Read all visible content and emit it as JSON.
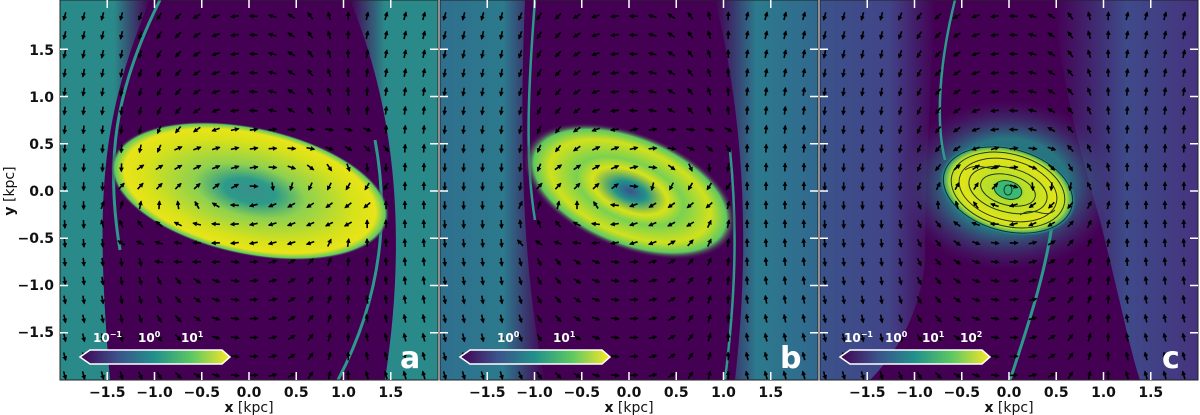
{
  "chart_data": [
    {
      "type": "heatmap",
      "panel": "a",
      "title": "",
      "xlabel": "x [kpc]",
      "ylabel": "y [kpc]",
      "xlim": [
        -2.0,
        2.0
      ],
      "ylim": [
        -2.0,
        2.0
      ],
      "xticks": [
        -1.5,
        -1.0,
        -0.5,
        0.0,
        0.5,
        1.0,
        1.5
      ],
      "yticks": [
        -1.5,
        -1.0,
        -0.5,
        0.0,
        0.5,
        1.0,
        1.5
      ],
      "colormap": "viridis",
      "colorbar": {
        "scale": "log",
        "ticks": [
          "10^-1",
          "10^0",
          "10^1"
        ],
        "extend": "both",
        "position": "lower-left inset"
      },
      "overlay": "velocity quiver arrows",
      "features": {
        "disk_semi_major_kpc": 1.45,
        "disk_semi_minor_kpc": 0.62,
        "disk_tilt_deg": -12,
        "dust_lane_offsets_kpc": [
          -1.5,
          1.5
        ]
      },
      "grid": false
    },
    {
      "type": "heatmap",
      "panel": "b",
      "xlabel": "x [kpc]",
      "ylabel": "",
      "xlim": [
        -2.0,
        2.0
      ],
      "ylim": [
        -2.0,
        2.0
      ],
      "xticks": [
        -1.5,
        -1.0,
        -0.5,
        0.0,
        0.5,
        1.0,
        1.5
      ],
      "colormap": "viridis",
      "colorbar": {
        "scale": "log",
        "ticks": [
          "10^0",
          "10^1"
        ],
        "extend": "both",
        "position": "lower-left inset"
      },
      "overlay": "velocity quiver arrows",
      "features": {
        "disk_semi_major_kpc": 1.15,
        "disk_semi_minor_kpc": 0.55,
        "disk_tilt_deg": -20,
        "dust_lane_offsets_kpc": [
          -1.1,
          1.1
        ]
      },
      "grid": false
    },
    {
      "type": "heatmap",
      "panel": "c",
      "xlabel": "x [kpc]",
      "ylabel": "",
      "xlim": [
        -2.0,
        2.0
      ],
      "ylim": [
        -2.0,
        2.0
      ],
      "xticks": [
        -1.5,
        -1.0,
        -0.5,
        0.0,
        0.5,
        1.0,
        1.5
      ],
      "colormap": "viridis",
      "colorbar": {
        "scale": "log",
        "ticks": [
          "10^-1",
          "10^0",
          "10^1",
          "10^2"
        ],
        "extend": "both",
        "position": "lower-left inset"
      },
      "overlay": "velocity quiver arrows + streamlines in nuclear ring",
      "features": {
        "disk_semi_major_kpc": 0.72,
        "disk_semi_minor_kpc": 0.45,
        "disk_tilt_deg": -15,
        "dust_lane_offsets_kpc": [
          -0.6,
          0.6
        ]
      },
      "grid": false
    }
  ],
  "axes": {
    "xlabel_bold": "x",
    "xlabel_unit": " [kpc]",
    "ylabel_bold": "y",
    "ylabel_unit": " [kpc]",
    "xtick_labels": [
      "−1.5",
      "−1.0",
      "−0.5",
      "0.0",
      "0.5",
      "1.0",
      "1.5"
    ],
    "ytick_labels": [
      "1.5",
      "1.0",
      "0.5",
      "0.0",
      "−0.5",
      "−1.0",
      "−1.5"
    ]
  },
  "panels": [
    {
      "letter": "a",
      "cb_ticks": [
        "10",
        "10",
        "10"
      ],
      "cb_exps": [
        "−1",
        "0",
        "1"
      ]
    },
    {
      "letter": "b",
      "cb_ticks": [
        "10",
        "10"
      ],
      "cb_exps": [
        "0",
        "1"
      ]
    },
    {
      "letter": "c",
      "cb_ticks": [
        "10",
        "10",
        "10",
        "10"
      ],
      "cb_exps": [
        "−1",
        "0",
        "1",
        "2"
      ]
    }
  ],
  "colors": {
    "viridis_dark": "#440154",
    "viridis_blue": "#3b528b",
    "viridis_teal": "#21918c",
    "viridis_green": "#5ec962",
    "viridis_yellow": "#fde725",
    "arrow": "#000000",
    "tick": "#ffffff"
  }
}
